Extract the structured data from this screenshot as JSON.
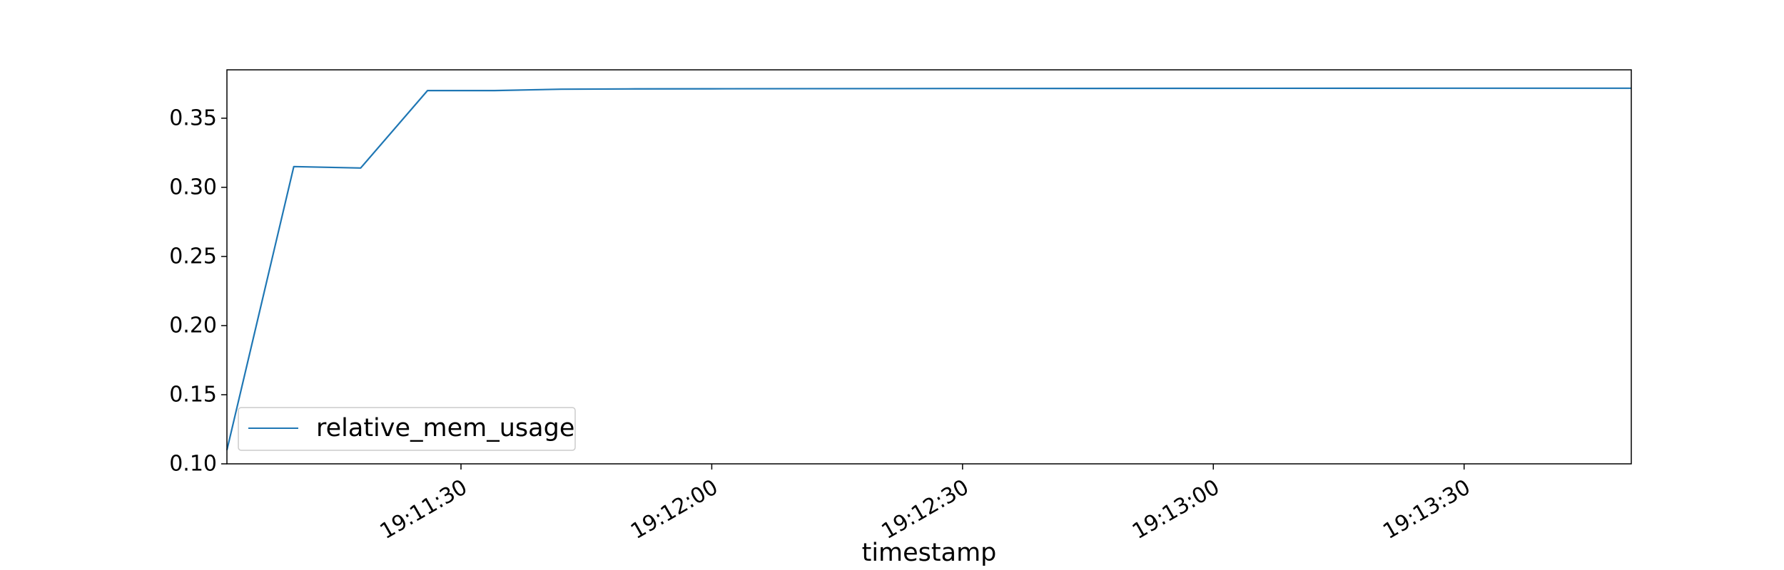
{
  "colors": {
    "series": "#1f77b4",
    "axis": "#000000",
    "legend_border": "#cccccc"
  },
  "chart_data": {
    "type": "line",
    "title": "",
    "xlabel": "timestamp",
    "ylabel": "",
    "x_unit": "clock time (HH:MM:SS)",
    "xlim": [
      "19:11:02",
      "19:13:50"
    ],
    "ylim": [
      0.1,
      0.385
    ],
    "x_ticks": [
      "19:11:30",
      "19:12:00",
      "19:12:30",
      "19:13:00",
      "19:13:30"
    ],
    "y_ticks": [
      "0.10",
      "0.15",
      "0.20",
      "0.25",
      "0.30",
      "0.35"
    ],
    "grid": false,
    "legend_position": "lower-left",
    "series": [
      {
        "name": "relative_mem_usage",
        "x": [
          "19:11:02",
          "19:11:10",
          "19:11:18",
          "19:11:26",
          "19:11:34",
          "19:11:42",
          "19:11:50",
          "19:12:00",
          "19:12:30",
          "19:13:00",
          "19:13:30",
          "19:13:50"
        ],
        "y": [
          0.11,
          0.315,
          0.314,
          0.37,
          0.37,
          0.371,
          0.3712,
          0.3713,
          0.3715,
          0.3716,
          0.3717,
          0.3717
        ]
      }
    ]
  }
}
